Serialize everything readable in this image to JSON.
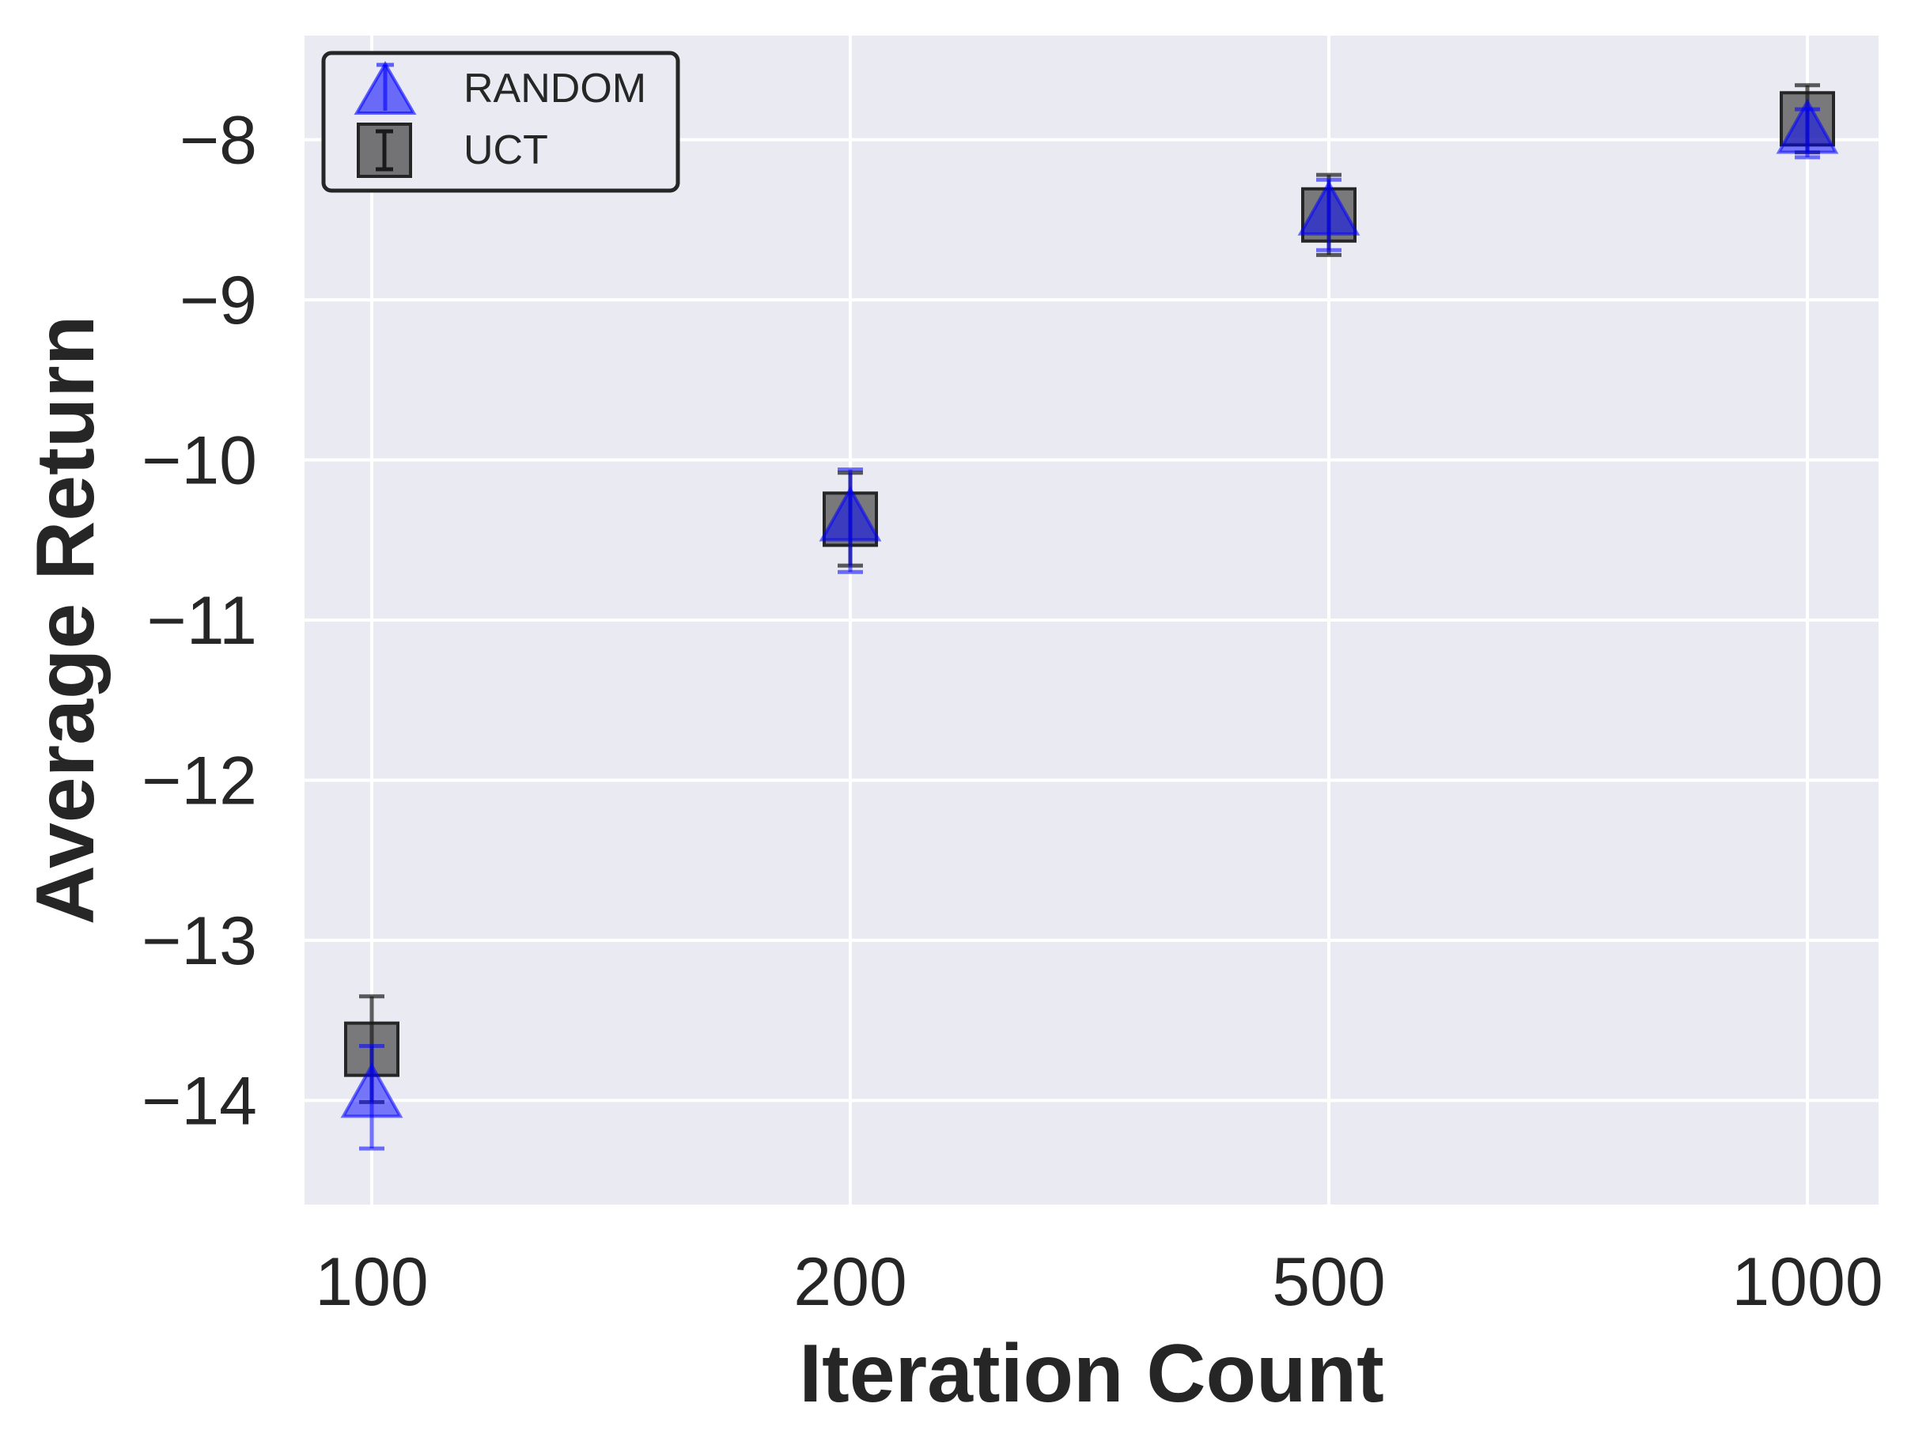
{
  "chart_data": {
    "type": "scatter",
    "categories": [
      "100",
      "200",
      "500",
      "1000"
    ],
    "xlabel": "Iteration Count",
    "ylabel": "Average Return",
    "ylim": [
      -14.65,
      -7.35
    ],
    "yticks": [
      -14,
      -13,
      -12,
      -11,
      -10,
      -9,
      -8
    ],
    "ytick_labels": [
      "−14",
      "−13",
      "−12",
      "−11",
      "−10",
      "−9",
      "−8"
    ],
    "grid": true,
    "legend_position": "top-left",
    "series": [
      {
        "name": "RANDOM",
        "marker": "triangle",
        "color": "#0000ff",
        "values": [
          -13.98,
          -10.38,
          -8.47,
          -7.96
        ],
        "errors": [
          0.32,
          0.32,
          0.22,
          0.15
        ]
      },
      {
        "name": "UCT",
        "marker": "square",
        "color": "#333333",
        "values": [
          -13.68,
          -10.37,
          -8.47,
          -7.87
        ],
        "errors": [
          0.33,
          0.29,
          0.25,
          0.21
        ]
      }
    ]
  }
}
